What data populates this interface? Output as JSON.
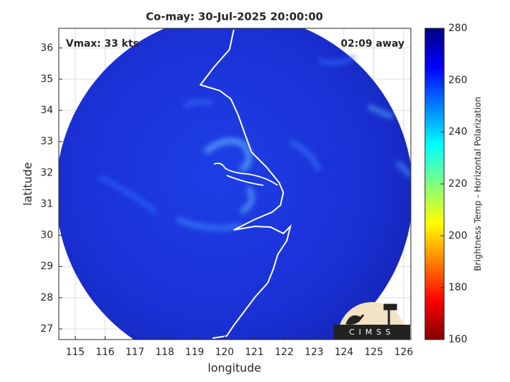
{
  "chart_data": {
    "type": "map",
    "title": "Co-may: 30-Jul-2025 20:00:00",
    "annotations": [
      "Vmax: 33 kts",
      "02:09 away"
    ],
    "xlabel": "longitude",
    "ylabel": "latitude",
    "xlim": [
      114.45,
      126.24
    ],
    "ylim": [
      26.66,
      36.63
    ],
    "xticks": [
      115,
      116,
      117,
      118,
      119,
      120,
      121,
      122,
      123,
      124,
      125,
      126
    ],
    "yticks": [
      27,
      28,
      29,
      30,
      31,
      32,
      33,
      34,
      35,
      36
    ],
    "grid": true,
    "colorbar": {
      "label": "Brightness Temp - Horizontal Polarization",
      "lim": [
        160,
        280
      ],
      "ticks": [
        160,
        180,
        200,
        220,
        240,
        260,
        280
      ],
      "colormap": "jet"
    },
    "logo": "CIMSS"
  }
}
